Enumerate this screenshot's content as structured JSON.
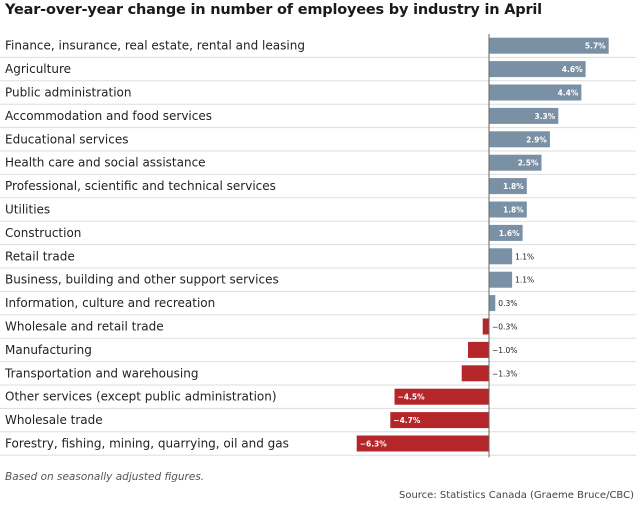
{
  "chart_data": {
    "type": "bar",
    "orientation": "horizontal",
    "title": "Year-over-year change in number of employees by industry in April",
    "xlabel": "",
    "ylabel": "",
    "xlim": [
      -6.3,
      5.7
    ],
    "categories": [
      "Finance, insurance, real estate, rental and leasing",
      "Agriculture",
      "Public administration",
      "Accommodation and food services",
      "Educational services",
      "Health care and social assistance",
      "Professional, scientific and technical services",
      "Utilities",
      "Construction",
      "Retail trade",
      "Business, building and other support services",
      "Information, culture and recreation",
      "Wholesale and retail trade",
      "Manufacturing",
      "Transportation and warehousing",
      "Other services (except public administration)",
      "Wholesale trade",
      "Forestry, fishing, mining, quarrying, oil and gas"
    ],
    "values": [
      5.7,
      4.6,
      4.4,
      3.3,
      2.9,
      2.5,
      1.8,
      1.8,
      1.6,
      1.1,
      1.1,
      0.3,
      -0.3,
      -1.0,
      -1.3,
      -4.5,
      -4.7,
      -6.3
    ],
    "labels": [
      "5.7%",
      "4.6%",
      "4.4%",
      "3.3%",
      "2.9%",
      "2.5%",
      "1.8%",
      "1.8%",
      "1.6%",
      "1.1%",
      "1.1%",
      "0.3%",
      "−0.3%",
      "−1.0%",
      "−1.3%",
      "−4.5%",
      "−4.7%",
      "−6.3%"
    ],
    "colors": {
      "positive": "#7a90a4",
      "negative": "#b5262a",
      "grid": "#dddddd",
      "axis": "#666666"
    }
  },
  "footnote": "Based on seasonally adjusted figures.",
  "source": "Source: Statistics Canada (Graeme Bruce/CBC)"
}
